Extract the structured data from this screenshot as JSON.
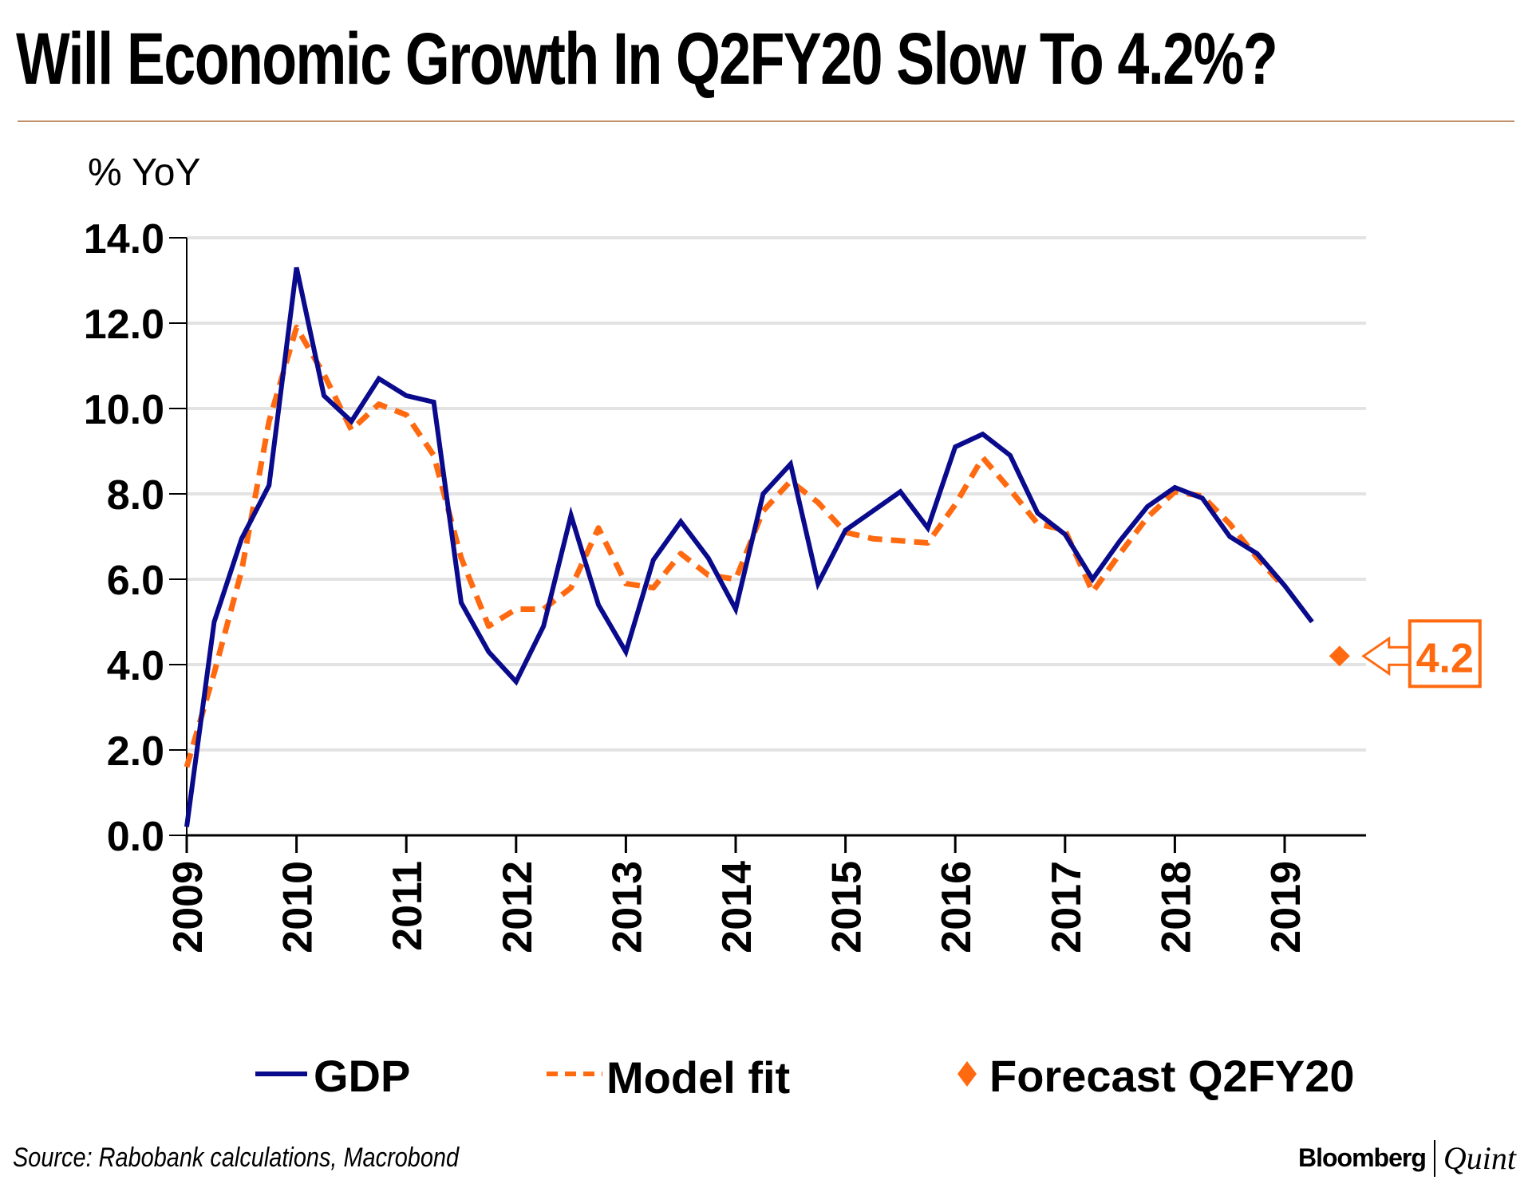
{
  "title": "Will Economic Growth In Q2FY20 Slow To 4.2%?",
  "source": "Source: Rabobank calculations, Macrobond",
  "brand": {
    "primary": "Bloomberg",
    "secondary": "Quint"
  },
  "colors": {
    "gdp": "#0a0a8c",
    "model": "#ff6a10",
    "forecast": "#ff6a10",
    "grid": "#e3e3e3",
    "rule": "#c0906a"
  },
  "chart_data": {
    "type": "line",
    "title": "Will Economic Growth In Q2FY20 Slow To 4.2%?",
    "ylabel": "% YoY",
    "xlabel": "",
    "ylim": [
      0,
      14
    ],
    "yticks": [
      "0.0",
      "2.0",
      "4.0",
      "6.0",
      "8.0",
      "10.0",
      "12.0",
      "14.0"
    ],
    "xticks": [
      "2009",
      "2010",
      "2011",
      "2012",
      "2013",
      "2014",
      "2015",
      "2016",
      "2017",
      "2018",
      "2019"
    ],
    "x_start": 2009.0,
    "x_step": 0.25,
    "grid": true,
    "legend_position": "bottom",
    "series": [
      {
        "name": "GDP",
        "style": "solid",
        "values": [
          0.2,
          5.0,
          6.95,
          8.2,
          13.3,
          10.3,
          9.7,
          10.7,
          10.3,
          10.15,
          5.45,
          4.3,
          3.6,
          4.9,
          7.5,
          5.4,
          4.3,
          6.45,
          7.35,
          6.5,
          5.3,
          8.0,
          8.7,
          5.9,
          7.15,
          7.6,
          8.05,
          7.2,
          9.1,
          9.4,
          8.9,
          7.55,
          7.05,
          6.0,
          6.9,
          7.7,
          8.15,
          7.9,
          7.0,
          6.6,
          5.85,
          5.0
        ]
      },
      {
        "name": "Model fit",
        "style": "dashed",
        "values": [
          1.6,
          3.8,
          6.2,
          9.7,
          11.9,
          10.8,
          9.5,
          10.1,
          9.85,
          8.9,
          6.5,
          4.9,
          5.3,
          5.3,
          5.8,
          7.2,
          5.9,
          5.8,
          6.6,
          6.1,
          6.0,
          7.6,
          8.3,
          7.8,
          7.1,
          6.95,
          6.9,
          6.85,
          7.75,
          8.85,
          8.1,
          7.3,
          7.15,
          5.7,
          6.6,
          7.45,
          8.05,
          7.95,
          7.3,
          6.5,
          5.8
        ]
      },
      {
        "name": "Forecast Q2FY20",
        "style": "marker",
        "x": 2019.5,
        "value": 4.2
      }
    ],
    "annotation": "4.2"
  }
}
